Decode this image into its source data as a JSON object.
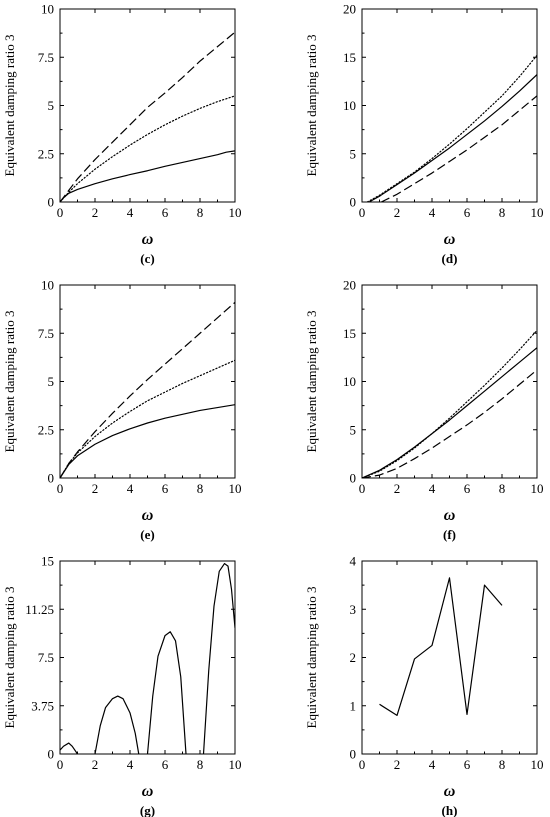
{
  "chart_data": [
    {
      "id": "c",
      "caption": "(c)",
      "type": "line",
      "xlabel": "ω",
      "ylabel": "Equivalent damping ratio 3",
      "xlim": [
        0,
        10
      ],
      "ylim": [
        0,
        10
      ],
      "xticks": [
        "0",
        "2",
        "4",
        "6",
        "8",
        "10"
      ],
      "yticks": [
        "0",
        "2.5",
        "5",
        "7.5",
        "10"
      ],
      "series": [
        {
          "style": "solid",
          "x": [
            0,
            0.2,
            0.5,
            1,
            2,
            3,
            4,
            5,
            6,
            7,
            8,
            9,
            9.5,
            10
          ],
          "y": [
            0,
            0.22,
            0.45,
            0.65,
            0.95,
            1.2,
            1.42,
            1.62,
            1.85,
            2.05,
            2.25,
            2.45,
            2.58,
            2.65
          ]
        },
        {
          "style": "dotted",
          "x": [
            0,
            0.5,
            1,
            2,
            3,
            4,
            5,
            6,
            7,
            8,
            9,
            10
          ],
          "y": [
            0,
            0.5,
            0.95,
            1.7,
            2.35,
            2.95,
            3.5,
            4.0,
            4.45,
            4.85,
            5.2,
            5.5
          ]
        },
        {
          "style": "dashed",
          "x": [
            0,
            0.5,
            1,
            2,
            3,
            4,
            5,
            6,
            7,
            8,
            9,
            10
          ],
          "y": [
            0,
            0.6,
            1.2,
            2.2,
            3.1,
            4.0,
            4.9,
            5.65,
            6.45,
            7.3,
            8.05,
            8.8
          ]
        }
      ]
    },
    {
      "id": "d",
      "caption": "(d)",
      "type": "line",
      "xlabel": "ω",
      "ylabel": "Equivalent damping ratio 3",
      "xlim": [
        0,
        10
      ],
      "ylim": [
        0,
        20
      ],
      "xticks": [
        "0",
        "2",
        "4",
        "6",
        "8",
        "10"
      ],
      "yticks": [
        "0",
        "5",
        "10",
        "15",
        "20"
      ],
      "series": [
        {
          "style": "solid",
          "x": [
            0.4,
            1,
            2,
            3,
            4,
            5,
            6,
            7,
            8,
            9,
            10
          ],
          "y": [
            0,
            0.6,
            1.8,
            3.0,
            4.3,
            5.6,
            7.0,
            8.4,
            9.9,
            11.5,
            13.2
          ]
        },
        {
          "style": "dotted",
          "x": [
            0.3,
            1,
            2,
            3,
            4,
            5,
            6,
            7,
            8,
            9,
            10
          ],
          "y": [
            0,
            0.7,
            1.9,
            3.1,
            4.5,
            6.0,
            7.6,
            9.3,
            11.0,
            13.0,
            15.2
          ]
        },
        {
          "style": "dashed",
          "x": [
            1.1,
            2,
            3,
            4,
            5,
            6,
            7,
            8,
            9,
            10
          ],
          "y": [
            0,
            0.8,
            1.9,
            3.0,
            4.2,
            5.4,
            6.7,
            8.0,
            9.5,
            11.0
          ]
        }
      ]
    },
    {
      "id": "e",
      "caption": "(e)",
      "type": "line",
      "xlabel": "ω",
      "ylabel": "Equivalent damping ratio 3",
      "xlim": [
        0,
        10
      ],
      "ylim": [
        0,
        10
      ],
      "xticks": [
        "0",
        "2",
        "4",
        "6",
        "8",
        "10"
      ],
      "yticks": [
        "0",
        "2.5",
        "5",
        "7.5",
        "10"
      ],
      "series": [
        {
          "style": "solid",
          "x": [
            0,
            0.5,
            1,
            2,
            3,
            4,
            5,
            6,
            7,
            8,
            9,
            10
          ],
          "y": [
            0,
            0.7,
            1.15,
            1.75,
            2.2,
            2.55,
            2.85,
            3.1,
            3.3,
            3.5,
            3.65,
            3.8
          ]
        },
        {
          "style": "dotted",
          "x": [
            0,
            0.5,
            1,
            2,
            3,
            4,
            5,
            6,
            7,
            8,
            9,
            10
          ],
          "y": [
            0,
            0.75,
            1.3,
            2.15,
            2.85,
            3.45,
            4.0,
            4.45,
            4.9,
            5.3,
            5.7,
            6.1
          ]
        },
        {
          "style": "dashed",
          "x": [
            0,
            0.5,
            1,
            2,
            3,
            4,
            5,
            6,
            7,
            8,
            9,
            10
          ],
          "y": [
            0,
            0.75,
            1.35,
            2.4,
            3.35,
            4.25,
            5.1,
            5.9,
            6.7,
            7.5,
            8.3,
            9.1
          ]
        }
      ]
    },
    {
      "id": "f",
      "caption": "(f)",
      "type": "line",
      "xlabel": "ω",
      "ylabel": "Equivalent damping ratio 3",
      "xlim": [
        0,
        10
      ],
      "ylim": [
        0,
        20
      ],
      "xticks": [
        "0",
        "2",
        "4",
        "6",
        "8",
        "10"
      ],
      "yticks": [
        "0",
        "5",
        "10",
        "15",
        "20"
      ],
      "series": [
        {
          "style": "solid",
          "x": [
            0,
            1,
            2,
            3,
            4,
            5,
            6,
            7,
            8,
            9,
            10
          ],
          "y": [
            0,
            0.8,
            1.9,
            3.2,
            4.6,
            6.0,
            7.5,
            9.0,
            10.5,
            12.0,
            13.5
          ]
        },
        {
          "style": "dotted",
          "x": [
            0,
            1,
            2,
            3,
            4,
            5,
            6,
            7,
            8,
            9,
            10
          ],
          "y": [
            0,
            0.7,
            1.8,
            3.1,
            4.6,
            6.2,
            7.9,
            9.6,
            11.4,
            13.3,
            15.3
          ]
        },
        {
          "style": "dashed",
          "x": [
            0,
            1,
            2,
            3,
            4,
            5,
            6,
            7,
            8,
            9,
            10
          ],
          "y": [
            0,
            0.3,
            1.0,
            2.0,
            3.1,
            4.3,
            5.5,
            6.8,
            8.2,
            9.7,
            11.2
          ]
        }
      ]
    },
    {
      "id": "g",
      "caption": "(g)",
      "type": "line",
      "xlabel": "ω",
      "ylabel": "Equivalent damping ratio 3",
      "xlim": [
        0,
        10
      ],
      "ylim": [
        0,
        15
      ],
      "xticks": [
        "0",
        "2",
        "4",
        "6",
        "8",
        "10"
      ],
      "yticks": [
        "0",
        "3.75",
        "7.5",
        "11.25",
        "15"
      ],
      "series": [
        {
          "style": "solid",
          "x": [
            -0.2,
            0.2,
            0.5,
            0.7,
            1.0
          ],
          "y": [
            0,
            0.6,
            0.85,
            0.6,
            0
          ]
        },
        {
          "style": "solid",
          "x": [
            2.0,
            2.3,
            2.6,
            3.0,
            3.3,
            3.6,
            4.0,
            4.3,
            4.5
          ],
          "y": [
            0,
            2.2,
            3.6,
            4.3,
            4.5,
            4.3,
            3.2,
            1.6,
            0
          ]
        },
        {
          "style": "solid",
          "x": [
            5.0,
            5.3,
            5.6,
            6.0,
            6.3,
            6.6,
            6.9,
            7.2
          ],
          "y": [
            0,
            4.5,
            7.6,
            9.2,
            9.5,
            8.8,
            6.0,
            0
          ]
        },
        {
          "style": "solid",
          "x": [
            8.2,
            8.5,
            8.8,
            9.1,
            9.4,
            9.6,
            9.8,
            10.0
          ],
          "y": [
            0,
            6.5,
            11.5,
            14.2,
            14.8,
            14.6,
            12.8,
            9.8
          ]
        }
      ]
    },
    {
      "id": "h",
      "caption": "(h)",
      "type": "line",
      "xlabel": "ω",
      "ylabel": "Equivalent damping ratio 3",
      "xlim": [
        0,
        10
      ],
      "ylim": [
        0,
        4
      ],
      "xticks": [
        "0",
        "2",
        "4",
        "6",
        "8",
        "10"
      ],
      "yticks": [
        "0",
        "1",
        "2",
        "3",
        "4"
      ],
      "series": [
        {
          "style": "solid",
          "x": [
            1,
            2,
            3,
            4,
            5,
            6,
            7,
            8
          ],
          "y": [
            1.03,
            0.8,
            1.97,
            2.25,
            3.65,
            0.82,
            3.5,
            3.08
          ]
        }
      ]
    }
  ]
}
